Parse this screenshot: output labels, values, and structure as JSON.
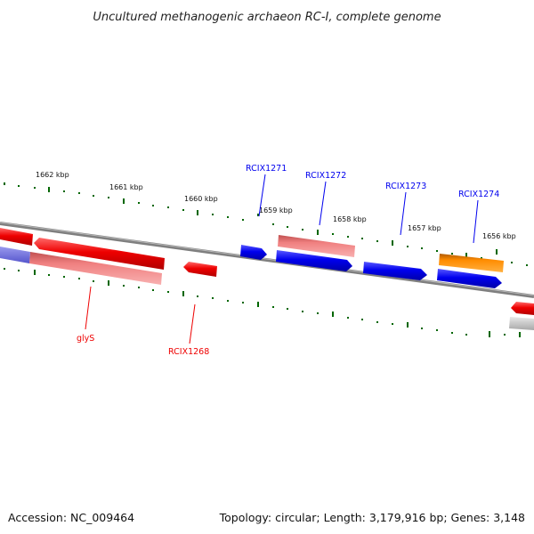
{
  "title": "Uncultured methanogenic archaeon RC-I, complete genome",
  "footer": {
    "accession": "Accession: NC_009464",
    "summary": "Topology: circular; Length: 3,179,916 bp; Genes: 3,148"
  },
  "scale": {
    "ticks": [
      "1662 kbp",
      "1661 kbp",
      "1660 kbp",
      "1659 kbp",
      "1658 kbp",
      "1657 kbp",
      "1656 kbp"
    ]
  },
  "genes": {
    "labels": [
      "RCIX1271",
      "RCIX1272",
      "RCIX1273",
      "RCIX1274",
      "glyS",
      "RCIX1268"
    ]
  },
  "colors": {
    "forward_strand": "#0000ee",
    "reverse_strand": "#ee0000",
    "highlight": "#ff8800",
    "pseudo_reverse": "#f08080",
    "pseudo_forward": "#7777dd",
    "backbone": "#808080",
    "ticks": "#006600"
  }
}
